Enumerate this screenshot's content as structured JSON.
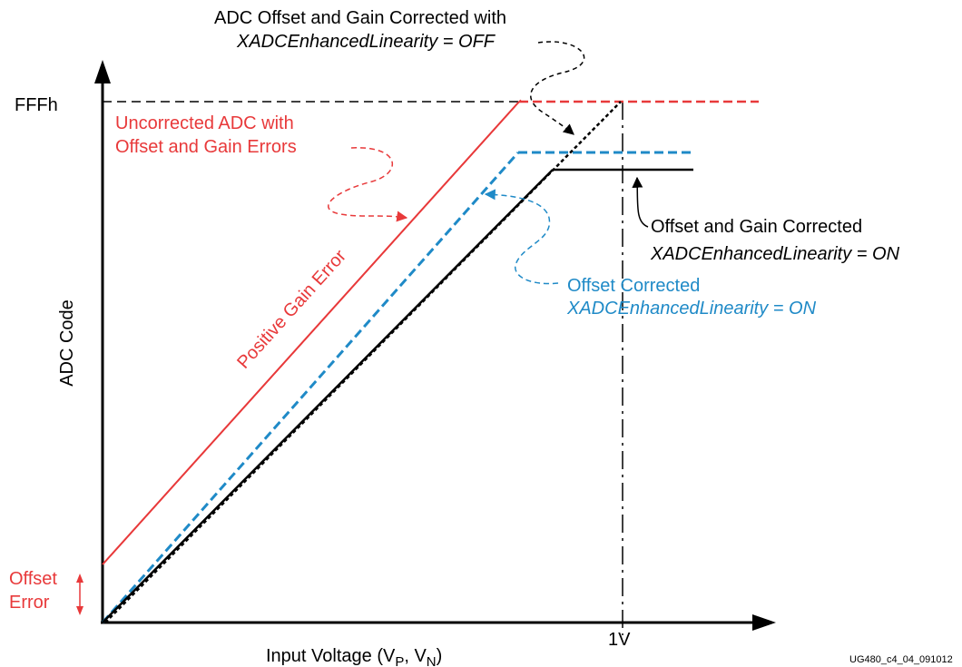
{
  "labels": {
    "y_axis": "ADC Code",
    "x_axis_main": "Input Voltage (V",
    "x_axis_sub_p": "P",
    "x_axis_sep": ", V",
    "x_axis_sub_n": "N",
    "x_axis_close": ")",
    "fffh": "FFFh",
    "one_v": "1V",
    "offset_error_1": "Offset",
    "offset_error_2": "Error",
    "uncorrected_1": "Uncorrected ADC with",
    "uncorrected_2": "Offset and Gain Errors",
    "positive_gain": "Positive Gain Error",
    "adc_offset_gain_1": "ADC Offset and Gain Corrected with",
    "adc_offset_gain_2": "XADCEnhancedLinearity = OFF",
    "offset_gain_corrected_1": "Offset and Gain Corrected",
    "offset_gain_corrected_2": "XADCEnhancedLinearity = ON",
    "offset_corrected_1": "Offset Corrected",
    "offset_corrected_2": "XADCEnhancedLinearity = ON",
    "figure_id": "UG480_c4_04_091012"
  },
  "colors": {
    "red": "#e8393a",
    "blue": "#1f8ac7",
    "black": "#000000"
  }
}
